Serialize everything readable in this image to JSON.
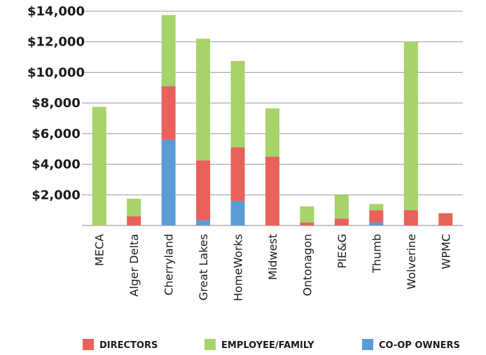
{
  "chart_data": {
    "type": "bar",
    "stacked": true,
    "categories": [
      "MECA",
      "Alger Delta",
      "Cherryland",
      "Great Lakes",
      "HomeWorks",
      "Midwest",
      "Ontonagon",
      "PIE&G",
      "Thumb",
      "Wolverine",
      "WPMC"
    ],
    "series": [
      {
        "name": "CO-OP OWNERS",
        "color": "#5b9bd5",
        "values": [
          0,
          0,
          5600,
          350,
          1600,
          0,
          0,
          0,
          200,
          0,
          0
        ]
      },
      {
        "name": "DIRECTORS",
        "color": "#e8615a",
        "values": [
          0,
          600,
          3500,
          3900,
          3500,
          4500,
          200,
          450,
          800,
          1000,
          800
        ]
      },
      {
        "name": "EMPLOYEE/FAMILY",
        "color": "#a6d36a",
        "values": [
          7750,
          1150,
          4650,
          7950,
          5650,
          3150,
          1050,
          1550,
          400,
          11000,
          0
        ]
      }
    ],
    "yticks": [
      "$2,000",
      "$4,000",
      "$6,000",
      "$8,000",
      "$10,000",
      "$12,000",
      "$14,000"
    ],
    "ylim": [
      0,
      14000
    ],
    "grid": true,
    "legend_position": "bottom",
    "legend": [
      "DIRECTORS",
      "EMPLOYEE/FAMILY",
      "CO-OP OWNERS"
    ]
  }
}
